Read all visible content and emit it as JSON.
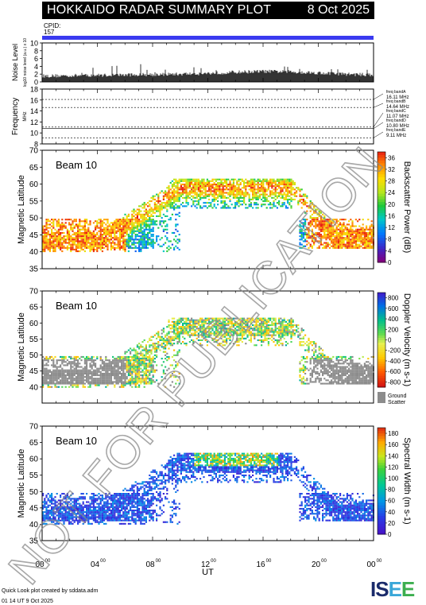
{
  "header": {
    "title": "HOKKAIDO RADAR SUMMARY PLOT",
    "date": "8 Oct 2025"
  },
  "cpid": {
    "label": "CPID:",
    "value": "157"
  },
  "colors": {
    "cpid_bar": "#3a3af0",
    "noise": "#000000",
    "ground": "#8c8c8c"
  },
  "footer": {
    "created": "Quick Look plot created by sddata.adm",
    "timestamp": "01 14 UT  9 Oct 2025"
  },
  "logo": {
    "text": "ISEE"
  },
  "watermark": "NOT FOR PUBLICATION",
  "chart_data": [
    {
      "type": "line",
      "name": "noise",
      "ylabel": "Noise Level",
      "ylabel_sub": "log10 noise level (a.u.) x 10",
      "ylim": [
        0,
        10
      ],
      "yticks": [
        0,
        2,
        4,
        6,
        8,
        10
      ],
      "x": [
        0,
        2,
        4,
        6,
        8,
        10,
        12,
        14,
        16,
        18,
        20,
        22,
        24
      ],
      "y": [
        1.5,
        1.6,
        1.7,
        1.8,
        1.9,
        2.0,
        2.2,
        2.5,
        2.7,
        2.6,
        2.3,
        2.0,
        1.8
      ]
    },
    {
      "type": "line",
      "name": "frequency",
      "ylabel": "Frequency",
      "ylabel_sub": "MHz",
      "ylim": [
        8,
        18
      ],
      "yticks": [
        8,
        10,
        12,
        14,
        16,
        18
      ],
      "bands": [
        {
          "label": "freq bandA",
          "value": "16.11 MHz",
          "mhz": 16.11
        },
        {
          "label": "freq bandB",
          "value": "14.64 MHz",
          "mhz": 14.64
        },
        {
          "label": "freq bandC",
          "value": "11.07 MHz",
          "mhz": 11.07
        },
        {
          "label": "freq bandD",
          "value": "10.80 MHz",
          "mhz": 10.8
        },
        {
          "label": "freq bandE",
          "value": "9.11 MHz",
          "mhz": 9.11
        }
      ]
    },
    {
      "type": "heatmap",
      "name": "power",
      "beam": "Beam 10",
      "ylabel": "Magnetic Latitude",
      "ylim": [
        35,
        70
      ],
      "yticks": [
        35,
        40,
        45,
        50,
        55,
        60,
        65,
        70
      ],
      "colorbar_label": "Backscatter Power (dB)",
      "colorbar_ticks": [
        "0",
        "4",
        "8",
        "12",
        "16",
        "20",
        "24",
        "28",
        "32",
        "36"
      ],
      "colorbar_range": [
        0,
        38
      ]
    },
    {
      "type": "heatmap",
      "name": "velocity",
      "beam": "Beam 10",
      "ylabel": "Magnetic Latitude",
      "ylim": [
        35,
        70
      ],
      "yticks": [
        40,
        45,
        50,
        55,
        60,
        65,
        70
      ],
      "colorbar_label": "Doppler Velocity (m s-1)",
      "colorbar_ticks": [
        "-800",
        "-600",
        "-400",
        "-200",
        "0",
        "200",
        "400",
        "600",
        "800"
      ],
      "colorbar_range": [
        -900,
        900
      ],
      "ground_label": [
        "Ground",
        "Scatter"
      ]
    },
    {
      "type": "heatmap",
      "name": "width",
      "beam": "Beam 10",
      "ylabel": "Magnetic Latitude",
      "ylim": [
        35,
        70
      ],
      "yticks": [
        35,
        40,
        45,
        50,
        55,
        60,
        65,
        70
      ],
      "colorbar_label": "Spectral Width (m s-1)",
      "colorbar_ticks": [
        "0",
        "20",
        "40",
        "60",
        "80",
        "100",
        "120",
        "140",
        "160",
        "180"
      ],
      "colorbar_range": [
        0,
        190
      ]
    }
  ],
  "xaxis": {
    "label": "UT",
    "ticks": [
      {
        "h": 0,
        "label": "00",
        "sup": "00"
      },
      {
        "h": 4,
        "label": "04",
        "sup": "00"
      },
      {
        "h": 8,
        "label": "08",
        "sup": "00"
      },
      {
        "h": 12,
        "label": "12",
        "sup": "00"
      },
      {
        "h": 16,
        "label": "16",
        "sup": "00"
      },
      {
        "h": 20,
        "label": "20",
        "sup": "00"
      },
      {
        "h": 24,
        "label": "00",
        "sup": "00"
      }
    ]
  }
}
